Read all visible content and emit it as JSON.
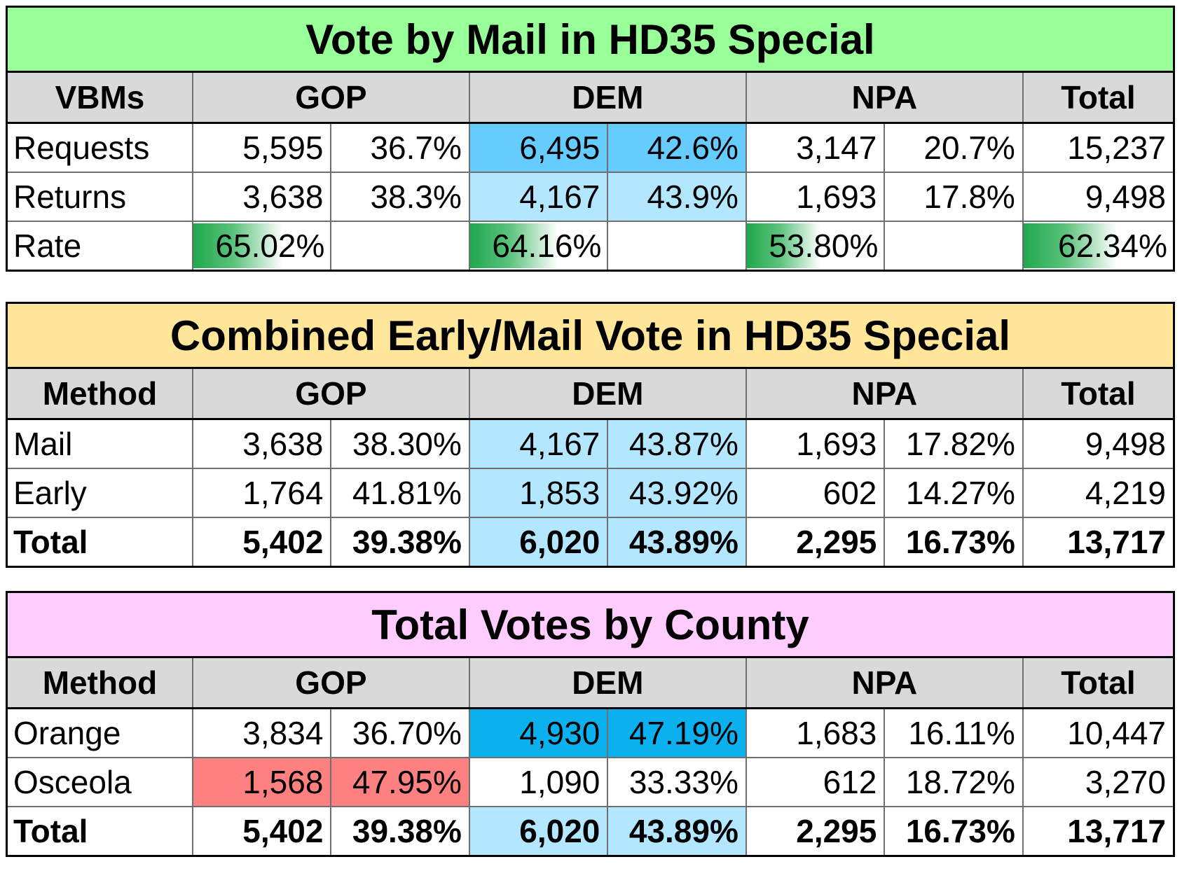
{
  "vbm": {
    "title": "Vote by Mail in HD35 Special",
    "headers": [
      "VBMs",
      "GOP",
      "DEM",
      "NPA",
      "Total"
    ],
    "rows": [
      {
        "label": "Requests",
        "gop_n": "5,595",
        "gop_p": "36.7%",
        "dem_n": "6,495",
        "dem_p": "42.6%",
        "npa_n": "3,147",
        "npa_p": "20.7%",
        "total": "15,237"
      },
      {
        "label": "Returns",
        "gop_n": "3,638",
        "gop_p": "38.3%",
        "dem_n": "4,167",
        "dem_p": "43.9%",
        "npa_n": "1,693",
        "npa_p": "17.8%",
        "total": "9,498"
      }
    ],
    "rate": {
      "label": "Rate",
      "gop": "65.02%",
      "dem": "64.16%",
      "npa": "53.80%",
      "total": "62.34%"
    },
    "rate_values": {
      "gop": 65.02,
      "dem": 64.16,
      "npa": 53.8,
      "total": 62.34
    }
  },
  "combined": {
    "title": "Combined Early/Mail Vote in HD35 Special",
    "headers": [
      "Method",
      "GOP",
      "DEM",
      "NPA",
      "Total"
    ],
    "rows": [
      {
        "label": "Mail",
        "gop_n": "3,638",
        "gop_p": "38.30%",
        "dem_n": "4,167",
        "dem_p": "43.87%",
        "npa_n": "1,693",
        "npa_p": "17.82%",
        "total": "9,498"
      },
      {
        "label": "Early",
        "gop_n": "1,764",
        "gop_p": "41.81%",
        "dem_n": "1,853",
        "dem_p": "43.92%",
        "npa_n": "602",
        "npa_p": "14.27%",
        "total": "4,219"
      },
      {
        "label": "Total",
        "gop_n": "5,402",
        "gop_p": "39.38%",
        "dem_n": "6,020",
        "dem_p": "43.89%",
        "npa_n": "2,295",
        "npa_p": "16.73%",
        "total": "13,717"
      }
    ]
  },
  "county": {
    "title": "Total Votes by County",
    "headers": [
      "Method",
      "GOP",
      "DEM",
      "NPA",
      "Total"
    ],
    "rows": [
      {
        "label": "Orange",
        "gop_n": "3,834",
        "gop_p": "36.70%",
        "dem_n": "4,930",
        "dem_p": "47.19%",
        "npa_n": "1,683",
        "npa_p": "16.11%",
        "total": "10,447"
      },
      {
        "label": "Osceola",
        "gop_n": "1,568",
        "gop_p": "47.95%",
        "dem_n": "1,090",
        "dem_p": "33.33%",
        "npa_n": "612",
        "npa_p": "18.72%",
        "total": "3,270"
      },
      {
        "label": "Total",
        "gop_n": "5,402",
        "gop_p": "39.38%",
        "dem_n": "6,020",
        "dem_p": "43.89%",
        "npa_n": "2,295",
        "npa_p": "16.73%",
        "total": "13,717"
      }
    ]
  },
  "colors": {
    "vbm_title_bg": "#99ff99",
    "combined_title_bg": "#ffe699",
    "county_title_bg": "#ffccff",
    "header_bg": "#d9d9d9",
    "dem_highlight": "#66ccff",
    "dem_light": "#b3e6ff",
    "dem_deep": "#0bb0ee",
    "gop_highlight": "#ff8080",
    "rate_bar": "#1fa84d"
  }
}
